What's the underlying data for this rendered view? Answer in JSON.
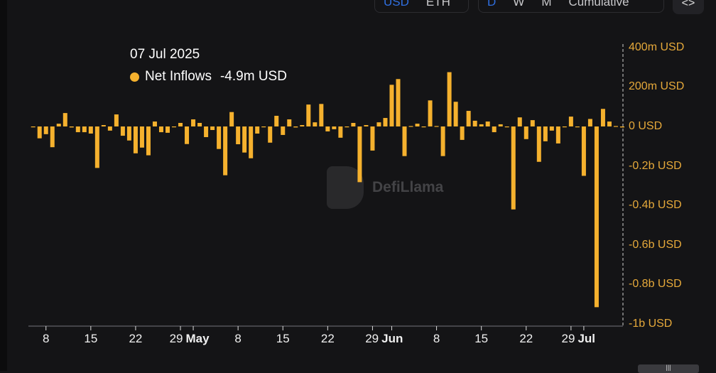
{
  "controls": {
    "currency": [
      "USD",
      "ETH"
    ],
    "currency_active": "USD",
    "period": [
      "D",
      "W",
      "M",
      "Cumulative"
    ],
    "period_active": "D",
    "embed_label": "<>"
  },
  "tooltip": {
    "date": "07 Jul 2025",
    "series": "Net Inflows",
    "value": "-4.9m USD"
  },
  "watermark": "DefiLlama",
  "colors": {
    "bar": "#f5b12e",
    "background": "#141416",
    "axis_label": "#e6a93a",
    "active": "#2f6fe0"
  },
  "chart_data": {
    "type": "bar",
    "series": [
      {
        "name": "Net Inflows",
        "unit": "m USD",
        "values": [
          -3,
          -60,
          -39,
          -105,
          14,
          68,
          -5,
          -29,
          -29,
          -36,
          -210,
          7,
          -21,
          61,
          -47,
          -71,
          -136,
          -107,
          -146,
          25,
          -29,
          -32,
          -2,
          18,
          -89,
          36,
          18,
          -54,
          -18,
          -114,
          -247,
          73,
          -90,
          -132,
          -161,
          -36,
          -3,
          -82,
          54,
          -43,
          36,
          -5,
          7,
          111,
          21,
          114,
          -25,
          -14,
          -57,
          -2,
          18,
          -282,
          7,
          -122,
          21,
          43,
          211,
          240,
          -150,
          2,
          14,
          -3,
          132,
          0,
          -150,
          275,
          125,
          -68,
          79,
          29,
          11,
          25,
          -29,
          11,
          -3,
          -420,
          46,
          -64,
          32,
          -179,
          -75,
          -21,
          -86,
          -3,
          50,
          -2,
          -250,
          38,
          -915,
          89,
          25,
          3,
          -4.9
        ]
      }
    ],
    "x_start": "2025-04-06",
    "x_end": "2025-07-07",
    "x_ticks": [
      {
        "label": "8",
        "day": 2
      },
      {
        "label": "15",
        "day": 9
      },
      {
        "label": "22",
        "day": 16
      },
      {
        "label": "29",
        "day": 23
      },
      {
        "label": "May",
        "day": 25,
        "month": true
      },
      {
        "label": "8",
        "day": 32
      },
      {
        "label": "15",
        "day": 39
      },
      {
        "label": "22",
        "day": 46
      },
      {
        "label": "29",
        "day": 53
      },
      {
        "label": "Jun",
        "day": 56,
        "month": true
      },
      {
        "label": "8",
        "day": 63
      },
      {
        "label": "15",
        "day": 70
      },
      {
        "label": "22",
        "day": 77
      },
      {
        "label": "29",
        "day": 84
      },
      {
        "label": "Jul",
        "day": 86,
        "month": true
      }
    ],
    "y_ticks": [
      {
        "label": "400m USD",
        "value": 400
      },
      {
        "label": "200m USD",
        "value": 200
      },
      {
        "label": "0 USD",
        "value": 0
      },
      {
        "label": "-0.2b USD",
        "value": -200
      },
      {
        "label": "-0.4b USD",
        "value": -400
      },
      {
        "label": "-0.6b USD",
        "value": -600
      },
      {
        "label": "-0.8b USD",
        "value": -800
      },
      {
        "label": "-1b USD",
        "value": -1000
      }
    ],
    "ylim": [
      -1000,
      400
    ],
    "grid": false,
    "legend": "tooltip top-left"
  }
}
